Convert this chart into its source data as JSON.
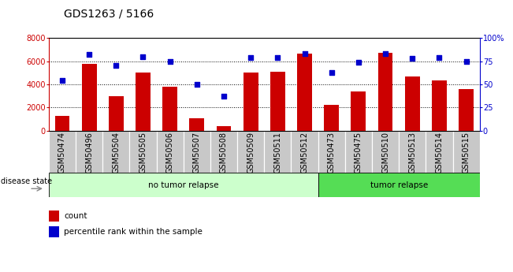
{
  "title": "GDS1263 / 5166",
  "samples": [
    "GSM50474",
    "GSM50496",
    "GSM50504",
    "GSM50505",
    "GSM50506",
    "GSM50507",
    "GSM50508",
    "GSM50509",
    "GSM50511",
    "GSM50512",
    "GSM50473",
    "GSM50475",
    "GSM50510",
    "GSM50513",
    "GSM50514",
    "GSM50515"
  ],
  "counts": [
    1300,
    5800,
    3000,
    5000,
    3800,
    1050,
    400,
    5000,
    5100,
    6650,
    2200,
    3400,
    6700,
    4650,
    4350,
    3600
  ],
  "percentiles": [
    54,
    82,
    70,
    80,
    75,
    50,
    37,
    79,
    79,
    83,
    63,
    74,
    83,
    78,
    79,
    75
  ],
  "group1_label": "no tumor relapse",
  "group1_count": 10,
  "group2_label": "tumor relapse",
  "group2_count": 6,
  "disease_state_label": "disease state",
  "bar_color": "#cc0000",
  "dot_color": "#0000cc",
  "group1_bg": "#ccffcc",
  "group2_bg": "#55dd55",
  "xtick_bg": "#c8c8c8",
  "ylim_left": [
    0,
    8000
  ],
  "ylim_right": [
    0,
    100
  ],
  "yticks_left": [
    0,
    2000,
    4000,
    6000,
    8000
  ],
  "yticks_right": [
    0,
    25,
    50,
    75,
    100
  ],
  "ytick_labels_left": [
    "0",
    "2000",
    "4000",
    "6000",
    "8000"
  ],
  "ytick_labels_right": [
    "0",
    "25",
    "50",
    "75",
    "100%"
  ],
  "legend_count_label": "count",
  "legend_pct_label": "percentile rank within the sample",
  "title_fontsize": 10,
  "tick_fontsize": 7,
  "legend_fontsize": 7.5
}
